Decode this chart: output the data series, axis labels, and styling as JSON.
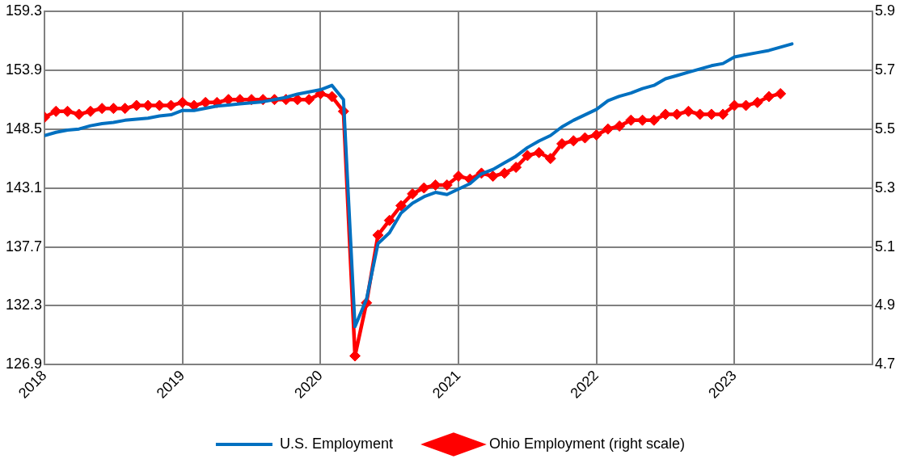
{
  "chart_data": {
    "type": "line",
    "x": [
      "2018-01",
      "2018-02",
      "2018-03",
      "2018-04",
      "2018-05",
      "2018-06",
      "2018-07",
      "2018-08",
      "2018-09",
      "2018-10",
      "2018-11",
      "2018-12",
      "2019-01",
      "2019-02",
      "2019-03",
      "2019-04",
      "2019-05",
      "2019-06",
      "2019-07",
      "2019-08",
      "2019-09",
      "2019-10",
      "2019-11",
      "2019-12",
      "2020-01",
      "2020-02",
      "2020-03",
      "2020-04",
      "2020-05",
      "2020-06",
      "2020-07",
      "2020-08",
      "2020-09",
      "2020-10",
      "2020-11",
      "2020-12",
      "2021-01",
      "2021-02",
      "2021-03",
      "2021-04",
      "2021-05",
      "2021-06",
      "2021-07",
      "2021-08",
      "2021-09",
      "2021-10",
      "2021-11",
      "2021-12",
      "2022-01",
      "2022-02",
      "2022-03",
      "2022-04",
      "2022-05",
      "2022-06",
      "2022-07",
      "2022-08",
      "2022-09",
      "2022-10",
      "2022-11",
      "2022-12",
      "2023-01",
      "2023-02",
      "2023-03",
      "2023-04",
      "2023-05",
      "2023-06"
    ],
    "series": [
      {
        "name": "U.S. Employment",
        "color": "#0070c0",
        "marker": "none",
        "values": [
          147.9,
          148.2,
          148.4,
          148.5,
          148.8,
          149.0,
          149.1,
          149.3,
          149.4,
          149.5,
          149.7,
          149.8,
          150.2,
          150.2,
          150.4,
          150.6,
          150.7,
          150.8,
          150.9,
          151.0,
          151.2,
          151.4,
          151.7,
          151.9,
          152.1,
          152.5,
          151.2,
          130.4,
          132.9,
          138.0,
          139.0,
          140.8,
          141.7,
          142.3,
          142.7,
          142.5,
          143.0,
          143.5,
          144.4,
          144.8,
          145.4,
          146.0,
          146.8,
          147.4,
          147.9,
          148.7,
          149.3,
          149.8,
          150.3,
          151.1,
          151.5,
          151.8,
          152.2,
          152.5,
          153.1,
          153.4,
          153.7,
          154.0,
          154.3,
          154.5,
          155.1,
          155.3,
          155.5,
          155.7,
          156.0,
          156.3
        ]
      },
      {
        "name": "Ohio Employment (right scale)",
        "color": "#ff0000",
        "marker": "diamond",
        "axis": "y2",
        "values": [
          5.54,
          5.56,
          5.56,
          5.55,
          5.56,
          5.57,
          5.57,
          5.57,
          5.58,
          5.58,
          5.58,
          5.58,
          5.59,
          5.58,
          5.59,
          5.59,
          5.6,
          5.6,
          5.6,
          5.6,
          5.6,
          5.6,
          5.6,
          5.6,
          5.62,
          5.61,
          5.56,
          4.73,
          4.91,
          5.14,
          5.19,
          5.24,
          5.28,
          5.3,
          5.31,
          5.31,
          5.34,
          5.33,
          5.35,
          5.34,
          5.35,
          5.37,
          5.41,
          5.42,
          5.4,
          5.45,
          5.46,
          5.47,
          5.48,
          5.5,
          5.51,
          5.53,
          5.53,
          5.53,
          5.55,
          5.55,
          5.56,
          5.55,
          5.55,
          5.55,
          5.58,
          5.58,
          5.59,
          5.61,
          5.62,
          null
        ]
      }
    ],
    "xlim": [
      "2018-01",
      "2024-01"
    ],
    "xticks": [
      {
        "value": "2018-01",
        "label": "2018"
      },
      {
        "value": "2019-01",
        "label": "2019"
      },
      {
        "value": "2020-01",
        "label": "2020"
      },
      {
        "value": "2021-01",
        "label": "2021"
      },
      {
        "value": "2022-01",
        "label": "2022"
      },
      {
        "value": "2023-01",
        "label": "2023"
      }
    ],
    "ylim": [
      126.9,
      159.3
    ],
    "yticks": [
      126.9,
      132.3,
      137.7,
      143.1,
      148.5,
      153.9,
      159.3
    ],
    "y2lim": [
      4.7,
      5.9
    ],
    "y2ticks": [
      4.7,
      4.9,
      5.1,
      5.3,
      5.5,
      5.7,
      5.9
    ],
    "grid": true,
    "legend": "bottom",
    "line_style": "solid"
  }
}
